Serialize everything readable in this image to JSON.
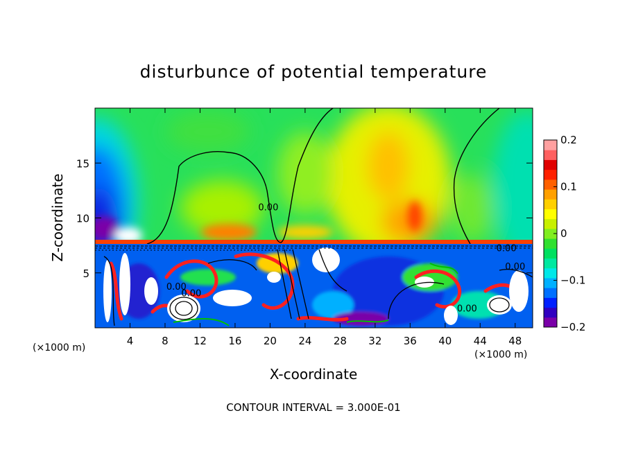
{
  "chart_data": {
    "type": "heatmap",
    "title": "disturbunce of potential temperature",
    "xlabel": "X-coordinate",
    "ylabel": "Z-coordinate",
    "x_unit_left": "(×1000 m)",
    "x_unit_right": "(×1000 m)",
    "footer": "CONTOUR INTERVAL = 3.000E-01",
    "xlim": [
      0,
      50
    ],
    "ylim": [
      0,
      20
    ],
    "x_ticks": [
      4,
      8,
      12,
      16,
      20,
      24,
      28,
      32,
      36,
      40,
      44,
      48
    ],
    "y_ticks": [
      5,
      10,
      15
    ],
    "colorbar": {
      "range": [
        -0.2,
        0.2
      ],
      "ticks": [
        {
          "value": 0.2,
          "label": "0.2"
        },
        {
          "value": 0.1,
          "label": "0.1"
        },
        {
          "value": 0.0,
          "label": "0"
        },
        {
          "value": -0.1,
          "label": "−0.1"
        },
        {
          "value": -0.2,
          "label": "−0.2"
        }
      ],
      "colors": [
        "#7a00a8",
        "#3000c0",
        "#0020ff",
        "#0070ff",
        "#00b0ff",
        "#00e8e8",
        "#00e8a0",
        "#00e060",
        "#30e030",
        "#80ee20",
        "#c8f000",
        "#ffff00",
        "#ffd000",
        "#ffa000",
        "#ff6000",
        "#ff2000",
        "#e00000",
        "#ff6060",
        "#ffa0a0"
      ]
    },
    "contour_labels": [
      {
        "x": 19.8,
        "z": 11.0,
        "text": "0.00"
      },
      {
        "x": 47.0,
        "z": 7.3,
        "text": "0.00"
      },
      {
        "x": 48.0,
        "z": 5.6,
        "text": "0.00"
      },
      {
        "x": 9.3,
        "z": 3.8,
        "text": "0.00"
      },
      {
        "x": 11.0,
        "z": 3.2,
        "text": "0.00"
      },
      {
        "x": 42.5,
        "z": 1.8,
        "text": "0.00"
      }
    ]
  }
}
